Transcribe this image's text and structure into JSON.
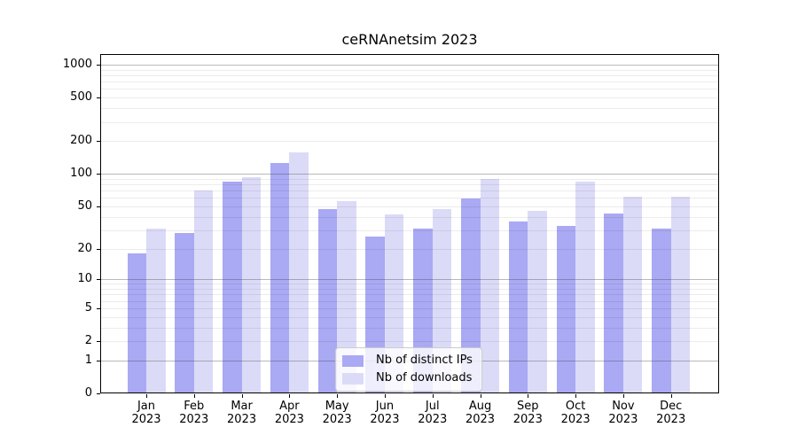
{
  "chart_data": {
    "type": "bar",
    "title": "ceRNAnetsim 2023",
    "categories": [
      "Jan 2023",
      "Feb 2023",
      "Mar 2023",
      "Apr 2023",
      "May 2023",
      "Jun 2023",
      "Jul 2023",
      "Aug 2023",
      "Sep 2023",
      "Oct 2023",
      "Nov 2023",
      "Dec 2023"
    ],
    "series": [
      {
        "name": "Nb of distinct IPs",
        "color": "#a9a9f4",
        "values": [
          18,
          28,
          84,
          126,
          47,
          26,
          31,
          59,
          36,
          33,
          43,
          31
        ]
      },
      {
        "name": "Nb of downloads",
        "color": "#dbdbf8",
        "values": [
          31,
          70,
          93,
          158,
          56,
          42,
          47,
          89,
          45,
          84,
          61,
          61
        ]
      }
    ],
    "xlabel": "",
    "ylabel": "",
    "yscale": "log1p",
    "yticks": [
      0,
      1,
      2,
      5,
      10,
      20,
      50,
      100,
      200,
      500,
      1000
    ],
    "ylim": [
      0,
      1250
    ],
    "grid": "horizontal",
    "legend_position": "lower center"
  },
  "colors": {
    "background": "#ffffff",
    "spine": "#000000",
    "grid_major": "#c3c3c3",
    "grid_minor": "#ececec",
    "bar_distinct_ips": "#a9a9f4",
    "bar_downloads": "#dbdbf8"
  }
}
